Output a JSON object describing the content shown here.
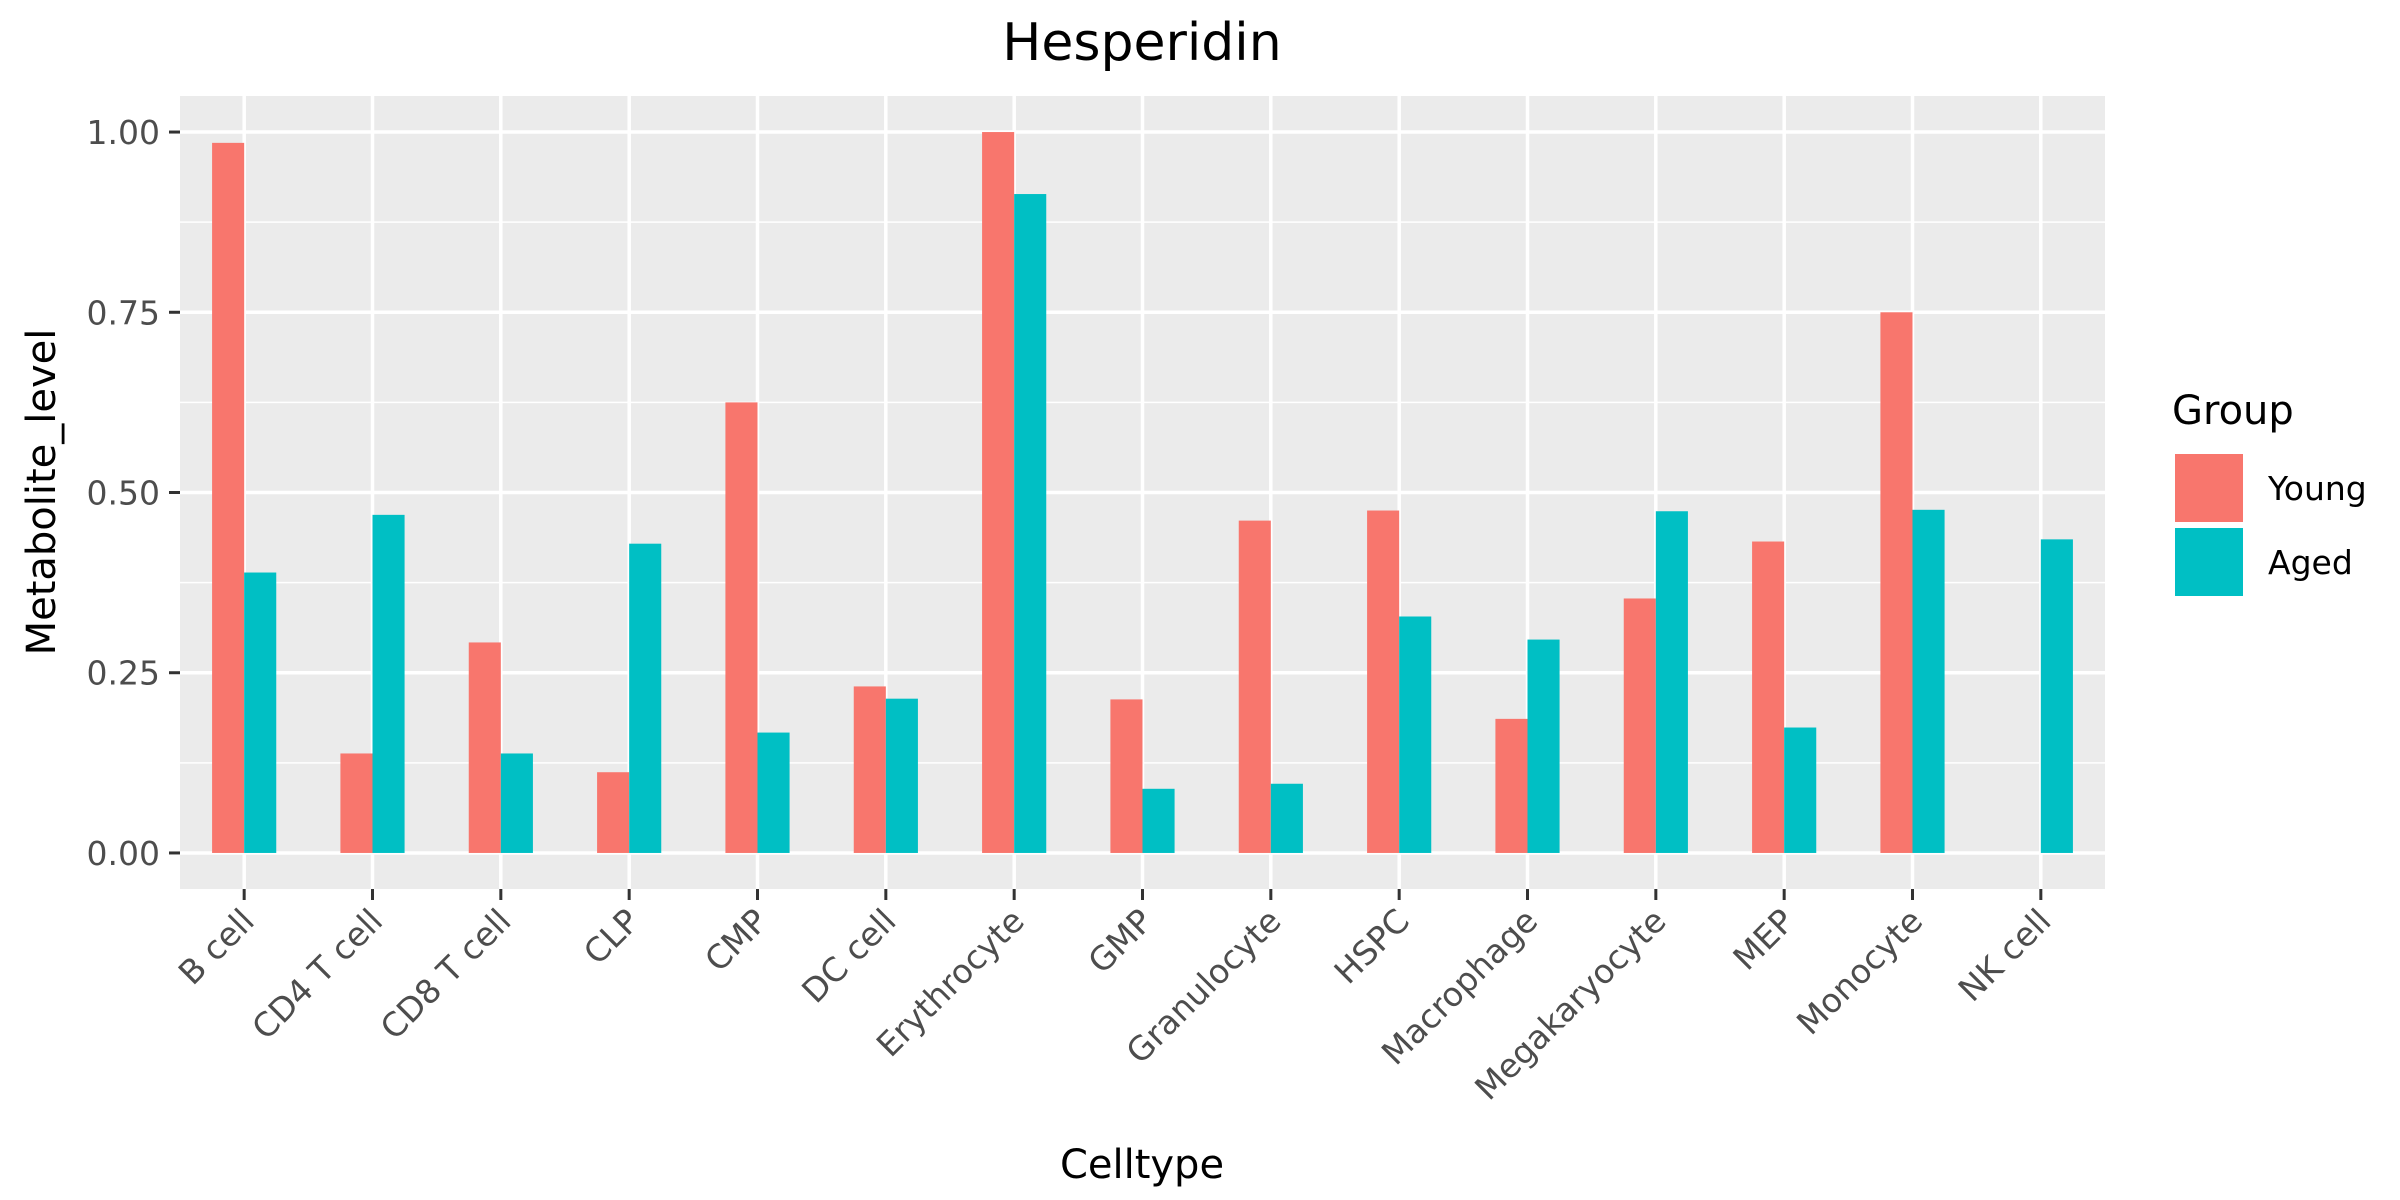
{
  "chart_data": {
    "type": "bar",
    "title": "Hesperidin",
    "xlabel": "Celltype",
    "ylabel": "Metabolite_level",
    "categories": [
      "B cell",
      "CD4 T cell",
      "CD8 T cell",
      "CLP",
      "CMP",
      "DC cell",
      "Erythrocyte",
      "GMP",
      "Granulocyte",
      "HSPC",
      "Macrophage",
      "Megakaryocyte",
      "MEP",
      "Monocyte",
      "NK cell"
    ],
    "series": [
      {
        "name": "Young",
        "color": "#F8766D",
        "values": [
          0.985,
          0.138,
          0.292,
          0.112,
          0.625,
          0.231,
          1.0,
          0.213,
          0.461,
          0.475,
          0.186,
          0.353,
          0.432,
          0.75,
          null
        ]
      },
      {
        "name": "Aged",
        "color": "#00BFC4",
        "values": [
          0.389,
          0.469,
          0.138,
          0.429,
          0.167,
          0.214,
          0.914,
          0.089,
          0.096,
          0.328,
          0.296,
          0.474,
          0.174,
          0.476,
          0.435
        ]
      }
    ],
    "ylim": [
      -0.05,
      1.05
    ],
    "yticks": [
      0,
      0.25,
      0.5,
      0.75,
      1.0
    ],
    "ytick_labels": [
      "0.00",
      "0.25",
      "0.50",
      "0.75",
      "1.00"
    ],
    "legend": {
      "title": "Group",
      "position": "right"
    },
    "grid": true,
    "panel_color": "#EBEBEB"
  }
}
